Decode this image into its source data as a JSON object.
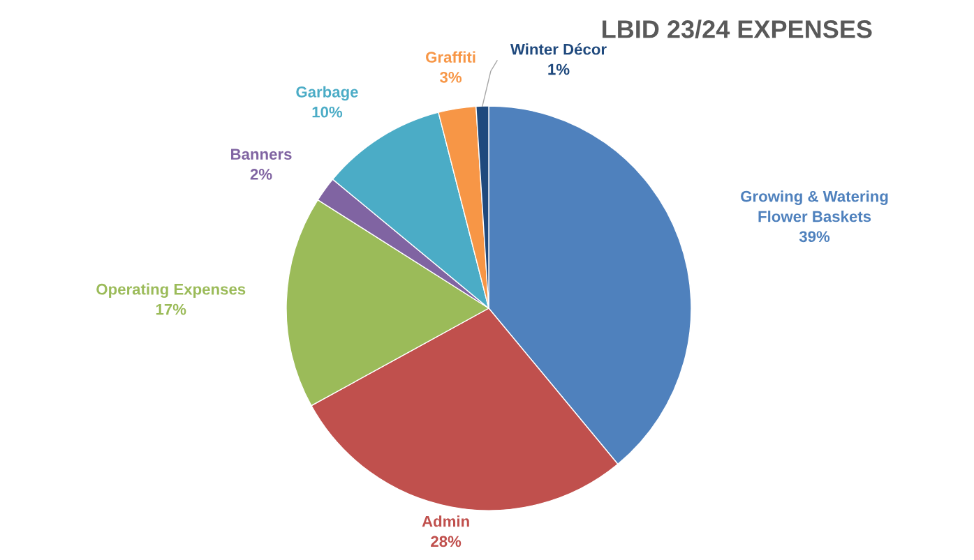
{
  "chart_data": {
    "type": "pie",
    "title": "LBID 23/24 EXPENSES",
    "categories": [
      "Growing & Watering\nFlower Baskets",
      "Admin",
      "Operating Expenses",
      "Banners",
      "Garbage",
      "Graffiti",
      "Winter Décor"
    ],
    "values": [
      39,
      28,
      17,
      2,
      10,
      3,
      1
    ],
    "value_labels": [
      "39%",
      "28%",
      "17%",
      "2%",
      "10%",
      "3%",
      "1%"
    ],
    "colors": [
      "#4f81bd",
      "#c0504d",
      "#9bbb59",
      "#8064a2",
      "#4bacc6",
      "#f79646",
      "#1f497d"
    ],
    "legend": false
  }
}
